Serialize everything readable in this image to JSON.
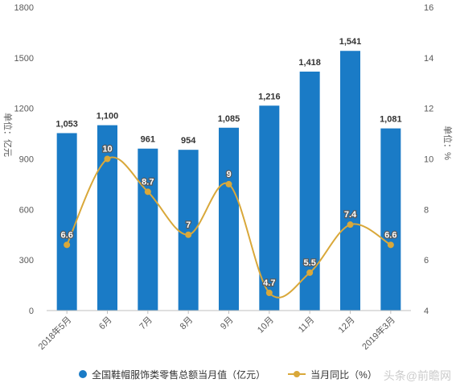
{
  "chart_data": {
    "type": "bar",
    "categories": [
      "2018年5月",
      "6月",
      "7月",
      "8月",
      "9月",
      "10月",
      "11月",
      "12月",
      "2019年3月"
    ],
    "series": [
      {
        "name": "全国鞋帽服饰类零售总额当月值（亿元）",
        "type": "bar",
        "axis": "left",
        "color": "#1a7bc6",
        "values": [
          1053,
          1100,
          961,
          954,
          1085,
          1216,
          1418,
          1541,
          1081
        ],
        "labels": [
          "1,053",
          "1,100",
          "961",
          "954",
          "1,085",
          "1,216",
          "1,418",
          "1,541",
          "1,081"
        ]
      },
      {
        "name": "当月同比（%）",
        "type": "line",
        "axis": "right",
        "color": "#d9a83a",
        "values": [
          6.6,
          10,
          8.7,
          7,
          9,
          4.7,
          5.5,
          7.4,
          6.6
        ],
        "labels": [
          "6.6",
          "10",
          "8.7",
          "7",
          "9",
          "4.7",
          "5.5",
          "7.4",
          "6.6"
        ]
      }
    ],
    "y_left": {
      "label": "单位：亿元",
      "ylim": [
        0,
        1800
      ],
      "ticks": [
        0,
        300,
        600,
        900,
        1200,
        1500,
        1800
      ]
    },
    "y_right": {
      "label": "单位：%",
      "ylim": [
        4,
        16
      ],
      "ticks": [
        4,
        6,
        8,
        10,
        12,
        14,
        16
      ]
    },
    "grid": false,
    "legend_position": "bottom",
    "watermark": "头条@前瞻网"
  }
}
